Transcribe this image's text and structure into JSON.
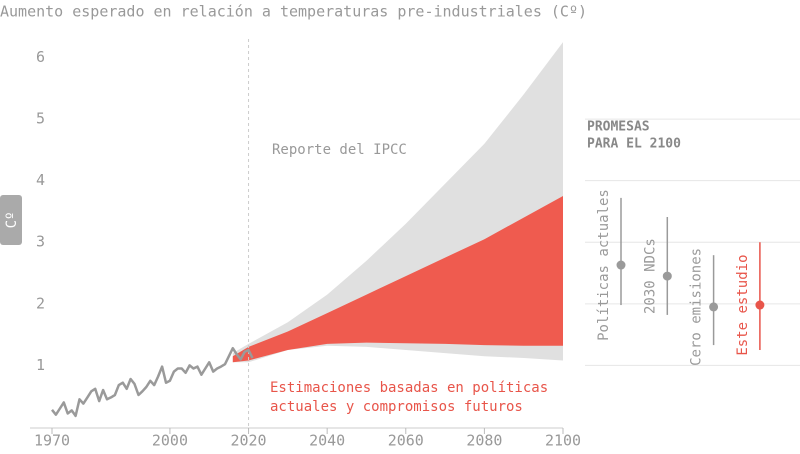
{
  "chart_data": [
    {
      "type": "band-line",
      "title": "Aumento esperado en relación a temperaturas pre-industriales (Cº)",
      "y_label": "Cº",
      "xlim": [
        1970,
        2100
      ],
      "xticks": [
        1970,
        2000,
        2020,
        2040,
        2060,
        2080,
        2100
      ],
      "ylim": [
        0,
        6.3
      ],
      "yticks": [
        1,
        2,
        3,
        4,
        5,
        6
      ],
      "reference_x": 2020,
      "series": [
        {
          "color": "#9a9a9a",
          "x": [
            1970,
            1971,
            1972,
            1973,
            1974,
            1975,
            1976,
            1977,
            1978,
            1979,
            1980,
            1981,
            1982,
            1983,
            1984,
            1985,
            1986,
            1987,
            1988,
            1989,
            1990,
            1991,
            1992,
            1993,
            1994,
            1995,
            1996,
            1997,
            1998,
            1999,
            2000,
            2001,
            2002,
            2003,
            2004,
            2005,
            2006,
            2007,
            2008,
            2009,
            2010,
            2011,
            2012,
            2013,
            2014,
            2015,
            2016,
            2017,
            2018,
            2019,
            2020,
            2021
          ],
          "values": [
            0.28,
            0.2,
            0.3,
            0.4,
            0.22,
            0.27,
            0.18,
            0.45,
            0.38,
            0.48,
            0.58,
            0.62,
            0.42,
            0.6,
            0.45,
            0.48,
            0.52,
            0.68,
            0.72,
            0.62,
            0.78,
            0.7,
            0.52,
            0.58,
            0.65,
            0.75,
            0.68,
            0.82,
            0.98,
            0.72,
            0.75,
            0.9,
            0.95,
            0.95,
            0.88,
            1.0,
            0.95,
            0.98,
            0.85,
            0.95,
            1.05,
            0.9,
            0.95,
            0.98,
            1.02,
            1.15,
            1.28,
            1.18,
            1.1,
            1.22,
            1.25,
            1.12
          ]
        }
      ],
      "bands": [
        {
          "name": [
            "Reporte del IPCC"
          ],
          "color": "#e0e0e0",
          "x": [
            2016,
            2020,
            2030,
            2040,
            2050,
            2060,
            2070,
            2080,
            2090,
            2100
          ],
          "low": [
            1.05,
            1.05,
            1.25,
            1.32,
            1.3,
            1.25,
            1.2,
            1.15,
            1.12,
            1.08
          ],
          "high": [
            1.2,
            1.35,
            1.7,
            2.15,
            2.7,
            3.3,
            3.95,
            4.6,
            5.4,
            6.25
          ]
        },
        {
          "name": [
            "Estimaciones basadas en políticas",
            "actuales y compromisos futuros"
          ],
          "color": "#ef5b4f",
          "x": [
            2016,
            2020,
            2030,
            2040,
            2050,
            2060,
            2070,
            2080,
            2090,
            2100
          ],
          "low": [
            1.05,
            1.08,
            1.25,
            1.35,
            1.37,
            1.36,
            1.35,
            1.33,
            1.32,
            1.32
          ],
          "high": [
            1.15,
            1.3,
            1.55,
            1.85,
            2.15,
            2.45,
            2.75,
            3.05,
            3.4,
            3.75
          ]
        }
      ]
    },
    {
      "type": "dot-range",
      "title": [
        "PROMESAS",
        "PARA EL 2100"
      ],
      "ylim": [
        0,
        6.3
      ],
      "yticks": [
        1,
        2,
        3,
        4,
        5
      ],
      "items": [
        {
          "label": "Políticas actuales",
          "color": "#9a9a9a",
          "low": 1.98,
          "high": 3.72,
          "value": 2.63
        },
        {
          "label": "2030 NDCs",
          "color": "#9a9a9a",
          "low": 1.82,
          "high": 3.41,
          "value": 2.45
        },
        {
          "label": "Cero emisiones",
          "color": "#9a9a9a",
          "low": 1.33,
          "high": 2.79,
          "value": 1.95
        },
        {
          "label": "Este estudio",
          "color": "#e8554a",
          "low": 1.25,
          "high": 3.0,
          "value": 1.98
        }
      ]
    }
  ]
}
